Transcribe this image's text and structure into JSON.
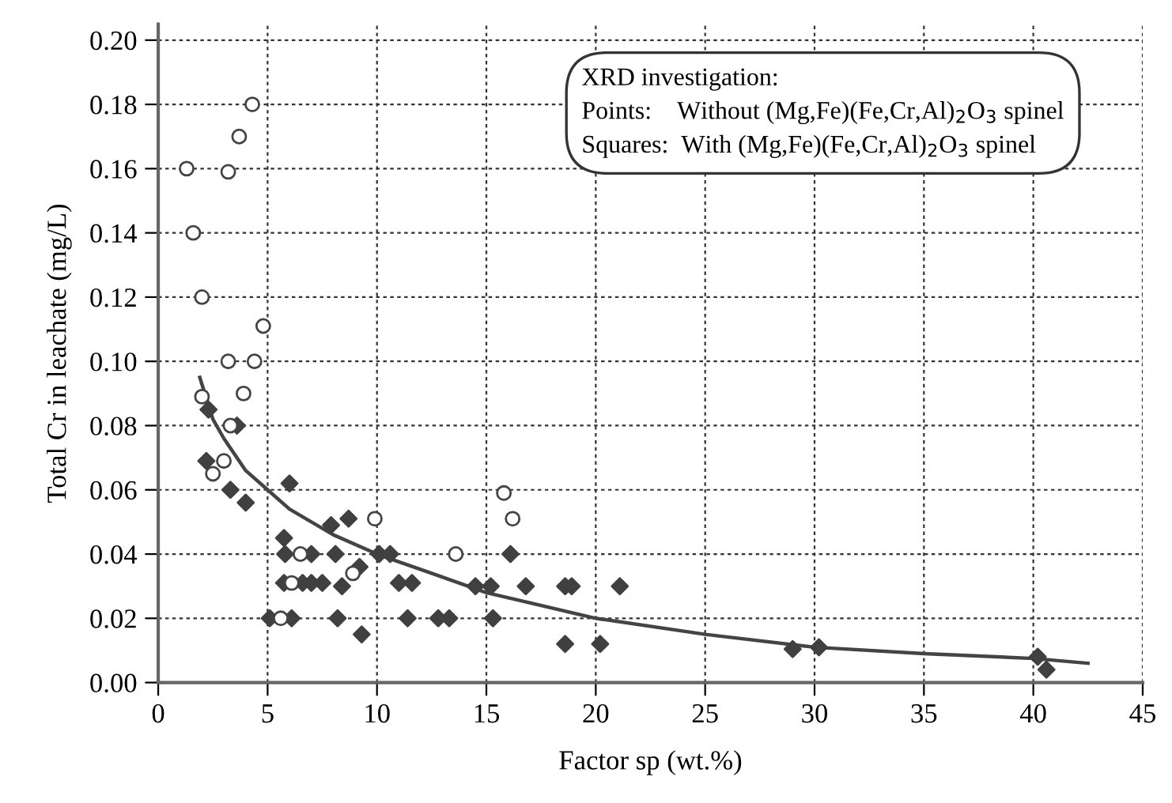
{
  "chart_data": {
    "type": "scatter",
    "xlabel": "Factor sp (wt.%)",
    "ylabel": "Total Cr in leachate (mg/L)",
    "xlim": [
      0,
      45
    ],
    "ylim": [
      0,
      0.205
    ],
    "xticks": [
      0,
      5,
      10,
      15,
      20,
      25,
      30,
      35,
      40,
      45
    ],
    "yticks": [
      {
        "value": 0,
        "label": "0.00"
      },
      {
        "value": 0.02,
        "label": "0.02"
      },
      {
        "value": 0.04,
        "label": "0.04"
      },
      {
        "value": 0.06,
        "label": "0.06"
      },
      {
        "value": 0.08,
        "label": "0.08"
      },
      {
        "value": 0.1,
        "label": "0.10"
      },
      {
        "value": 0.12,
        "label": "0.12"
      },
      {
        "value": 0.14,
        "label": "0.14"
      },
      {
        "value": 0.16,
        "label": "0.16"
      },
      {
        "value": 0.18,
        "label": "0.18"
      },
      {
        "value": 0.2,
        "label": "0.20"
      }
    ],
    "grid": true,
    "legend": false,
    "annotations": [
      "XRD investigation:\nPoints:    Without (Mg,Fe)(Fe,Cr,Al)$_{2}$O$_{3}$ spinel\nSquares:  With (Mg,Fe)(Fe,Cr,Al)$_{2}$O$_{3}$ spinel"
    ],
    "series": [
      {
        "marker": "circle",
        "color": "#444444",
        "x": [
          4.3,
          3.7,
          1.3,
          3.2,
          1.6,
          2.0,
          4.8,
          3.2,
          4.4,
          3.9,
          3.3,
          3.0,
          2.5,
          2.0,
          5.6,
          6.1,
          6.5,
          8.9,
          9.9,
          13.6,
          15.8,
          16.2
        ],
        "values": [
          0.18,
          0.17,
          0.16,
          0.159,
          0.14,
          0.12,
          0.111,
          0.1,
          0.1,
          0.09,
          0.08,
          0.069,
          0.065,
          0.089,
          0.02,
          0.031,
          0.04,
          0.034,
          0.051,
          0.04,
          0.059,
          0.051
        ]
      },
      {
        "marker": "diamond",
        "color": "#404040",
        "x": [
          2.2,
          2.3,
          3.6,
          3.3,
          4.0,
          6.0,
          5.75,
          5.8,
          7.0,
          8.1,
          7.9,
          8.7,
          10.1,
          10.6,
          5.75,
          6.6,
          7.0,
          7.5,
          8.4,
          9.2,
          11.0,
          11.6,
          5.1,
          6.1,
          8.2,
          11.4,
          12.8,
          13.3,
          9.3,
          14.5,
          15.2,
          16.8,
          18.6,
          18.9,
          21.1,
          15.3,
          16.1,
          18.6,
          20.2,
          29.0,
          30.2,
          40.2,
          40.6
        ],
        "values": [
          0.069,
          0.085,
          0.08,
          0.06,
          0.056,
          0.062,
          0.045,
          0.04,
          0.04,
          0.04,
          0.049,
          0.051,
          0.04,
          0.04,
          0.031,
          0.031,
          0.031,
          0.031,
          0.03,
          0.036,
          0.031,
          0.031,
          0.02,
          0.02,
          0.02,
          0.02,
          0.02,
          0.02,
          0.015,
          0.03,
          0.03,
          0.03,
          0.03,
          0.03,
          0.03,
          0.02,
          0.04,
          0.012,
          0.012,
          0.0104,
          0.011,
          0.008,
          0.004
        ]
      },
      {
        "type": "line",
        "marker": "none",
        "line_style": "solid",
        "color": "#444444",
        "x": [
          1.9,
          2.5,
          3,
          4,
          5,
          6,
          8,
          10,
          12.5,
          15,
          20,
          25,
          30,
          35,
          40,
          42.5
        ],
        "values": [
          0.095,
          0.082,
          0.076,
          0.066,
          0.06,
          0.054,
          0.046,
          0.04,
          0.034,
          0.028,
          0.02,
          0.015,
          0.011,
          0.009,
          0.0075,
          0.006
        ]
      }
    ]
  }
}
